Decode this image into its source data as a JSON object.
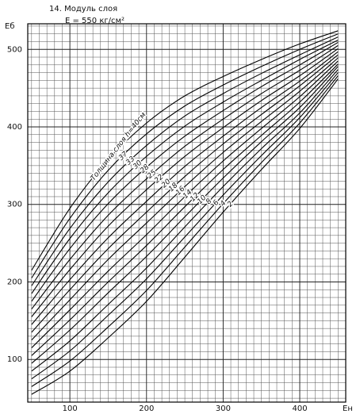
{
  "chart_data": {
    "type": "line",
    "title": "14. Модуль слоя",
    "subtitle": "E = 550 кг/см²",
    "y_label": "Еб",
    "x_label": "Eн",
    "x": [
      50,
      100,
      150,
      200,
      250,
      300,
      350,
      400,
      450
    ],
    "xlim": [
      45,
      460
    ],
    "xticks": [
      100,
      200,
      300,
      400
    ],
    "ylim": [
      45,
      533
    ],
    "yticks": [
      100,
      200,
      300,
      400,
      500
    ],
    "grid": true,
    "grid_step": 10,
    "series": [
      {
        "name": "Толщина слоя h=40см",
        "color": "#000000",
        "values": [
          215,
          295,
          358,
          405,
          440,
          465,
          487,
          507,
          524
        ]
      },
      {
        "name": "37",
        "color": "#000000",
        "values": [
          205,
          282,
          344,
          391,
          427,
          454,
          478,
          500,
          520
        ]
      },
      {
        "name": "33",
        "color": "#000000",
        "values": [
          195,
          269,
          329,
          376,
          414,
          443,
          469,
          493,
          516
        ]
      },
      {
        "name": "30",
        "color": "#000000",
        "values": [
          185,
          256,
          315,
          362,
          401,
          432,
          460,
          487,
          512
        ]
      },
      {
        "name": "28",
        "color": "#000000",
        "values": [
          175,
          243,
          301,
          348,
          388,
          421,
          452,
          480,
          509
        ]
      },
      {
        "name": "25",
        "color": "#000000",
        "values": [
          165,
          229,
          286,
          333,
          375,
          410,
          443,
          473,
          505
        ]
      },
      {
        "name": "22",
        "color": "#000000",
        "values": [
          155,
          216,
          272,
          319,
          362,
          399,
          434,
          466,
          501
        ]
      },
      {
        "name": "20",
        "color": "#000000",
        "values": [
          145,
          203,
          257,
          304,
          349,
          388,
          425,
          459,
          497
        ]
      },
      {
        "name": "18",
        "color": "#000000",
        "values": [
          135,
          190,
          243,
          290,
          336,
          378,
          416,
          453,
          493
        ]
      },
      {
        "name": "16",
        "color": "#000000",
        "values": [
          125,
          177,
          229,
          276,
          323,
          367,
          407,
          446,
          489
        ]
      },
      {
        "name": "14",
        "color": "#000000",
        "values": [
          115,
          164,
          214,
          261,
          310,
          356,
          398,
          439,
          485
        ]
      },
      {
        "name": "12",
        "color": "#000000",
        "values": [
          105,
          151,
          200,
          247,
          297,
          345,
          389,
          432,
          481
        ]
      },
      {
        "name": "10",
        "color": "#000000",
        "values": [
          95,
          138,
          186,
          233,
          284,
          334,
          381,
          425,
          478
        ]
      },
      {
        "name": "8",
        "color": "#000000",
        "values": [
          85,
          124,
          171,
          218,
          271,
          323,
          372,
          418,
          474
        ]
      },
      {
        "name": "6",
        "color": "#000000",
        "values": [
          75,
          111,
          157,
          204,
          258,
          312,
          363,
          412,
          470
        ]
      },
      {
        "name": "4",
        "color": "#000000",
        "values": [
          65,
          98,
          142,
          189,
          245,
          301,
          354,
          405,
          466
        ]
      },
      {
        "name": "2",
        "color": "#000000",
        "values": [
          55,
          85,
          128,
          175,
          232,
          290,
          345,
          398,
          462
        ]
      }
    ]
  }
}
